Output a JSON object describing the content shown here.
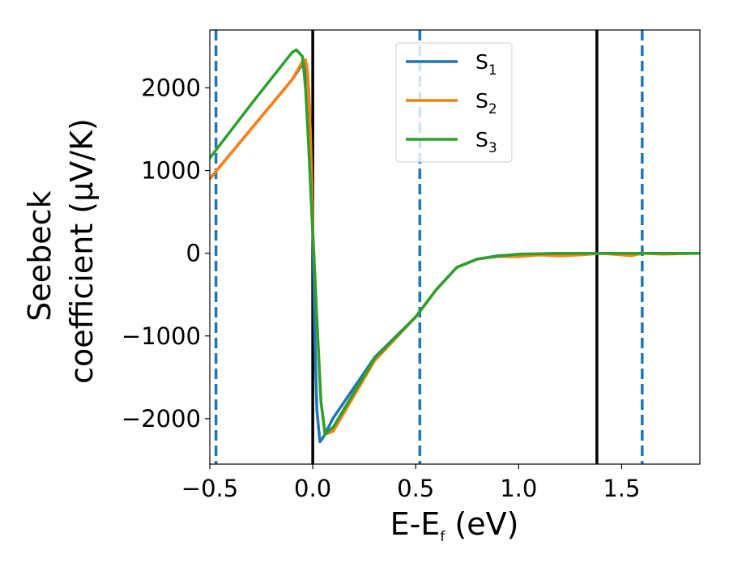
{
  "chart_data": {
    "type": "line",
    "xlabel": "E-E",
    "xlabel_sub": "f",
    "xlabel_unit": " (eV)",
    "ylabel_line1": "Seebeck",
    "ylabel_line2": "coefficient  (μV/K)",
    "xlim": [
      -0.5,
      1.88
    ],
    "ylim": [
      -2550,
      2700
    ],
    "x_ticks": [
      -0.5,
      0.0,
      0.5,
      1.0,
      1.5
    ],
    "x_tick_labels": [
      "−0.5",
      "0.0",
      "0.5",
      "1.0",
      "1.5"
    ],
    "y_ticks": [
      -2000,
      -1000,
      0,
      1000,
      2000
    ],
    "y_tick_labels": [
      "−2000",
      "−1000",
      "0",
      "1000",
      "2000"
    ],
    "grid": false,
    "legend_position": "top-center",
    "vlines": [
      {
        "x": -0.47,
        "style": "dashed",
        "color": "#1f77b4"
      },
      {
        "x": 0.0,
        "style": "solid",
        "color": "#000000"
      },
      {
        "x": 0.52,
        "style": "dashed",
        "color": "#1f77b4"
      },
      {
        "x": 1.38,
        "style": "solid",
        "color": "#000000"
      },
      {
        "x": 1.6,
        "style": "dashed",
        "color": "#1f77b4"
      }
    ],
    "series": [
      {
        "name": "S",
        "name_sub": "1",
        "color": "#1f77b4",
        "x": [
          -0.5,
          -0.3,
          -0.1,
          -0.06,
          -0.04,
          -0.02,
          -0.01,
          0.0,
          0.01,
          0.02,
          0.035,
          0.05,
          0.1,
          0.3,
          0.5,
          0.6,
          0.7,
          0.8,
          0.9,
          1.0,
          1.2,
          1.4,
          1.6,
          1.88
        ],
        "y": [
          900,
          1500,
          2100,
          2250,
          2300,
          2000,
          1400,
          300,
          -1000,
          -1900,
          -2280,
          -2230,
          -1990,
          -1260,
          -770,
          -440,
          -170,
          -70,
          -30,
          -15,
          0,
          0,
          0,
          0
        ]
      },
      {
        "name": "S",
        "name_sub": "2",
        "color": "#ff7f0e",
        "x": [
          -0.5,
          -0.3,
          -0.1,
          -0.05,
          -0.035,
          -0.025,
          -0.015,
          -0.005,
          0.0,
          0.02,
          0.04,
          0.06,
          0.1,
          0.3,
          0.5,
          0.6,
          0.7,
          0.8,
          0.9,
          1.0,
          1.1,
          1.2,
          1.3,
          1.4,
          1.5,
          1.55,
          1.6,
          1.7,
          1.88
        ],
        "y": [
          900,
          1500,
          2100,
          2320,
          2340,
          2200,
          1700,
          900,
          300,
          -800,
          -1800,
          -2190,
          -2150,
          -1300,
          -770,
          -440,
          -170,
          -70,
          -40,
          -40,
          -20,
          -30,
          -20,
          0,
          -20,
          -30,
          0,
          -10,
          0
        ]
      },
      {
        "name": "S",
        "name_sub": "3",
        "color": "#2ca02c",
        "x": [
          -0.5,
          -0.3,
          -0.1,
          -0.08,
          -0.05,
          -0.035,
          -0.02,
          -0.005,
          0.0,
          0.02,
          0.04,
          0.06,
          0.1,
          0.3,
          0.5,
          0.6,
          0.7,
          0.8,
          0.9,
          1.0,
          1.2,
          1.4,
          1.6,
          1.88
        ],
        "y": [
          1150,
          1800,
          2430,
          2460,
          2380,
          2000,
          1300,
          500,
          250,
          -800,
          -1800,
          -2190,
          -2100,
          -1270,
          -770,
          -440,
          -170,
          -70,
          -35,
          -10,
          0,
          0,
          0,
          0
        ]
      }
    ]
  }
}
